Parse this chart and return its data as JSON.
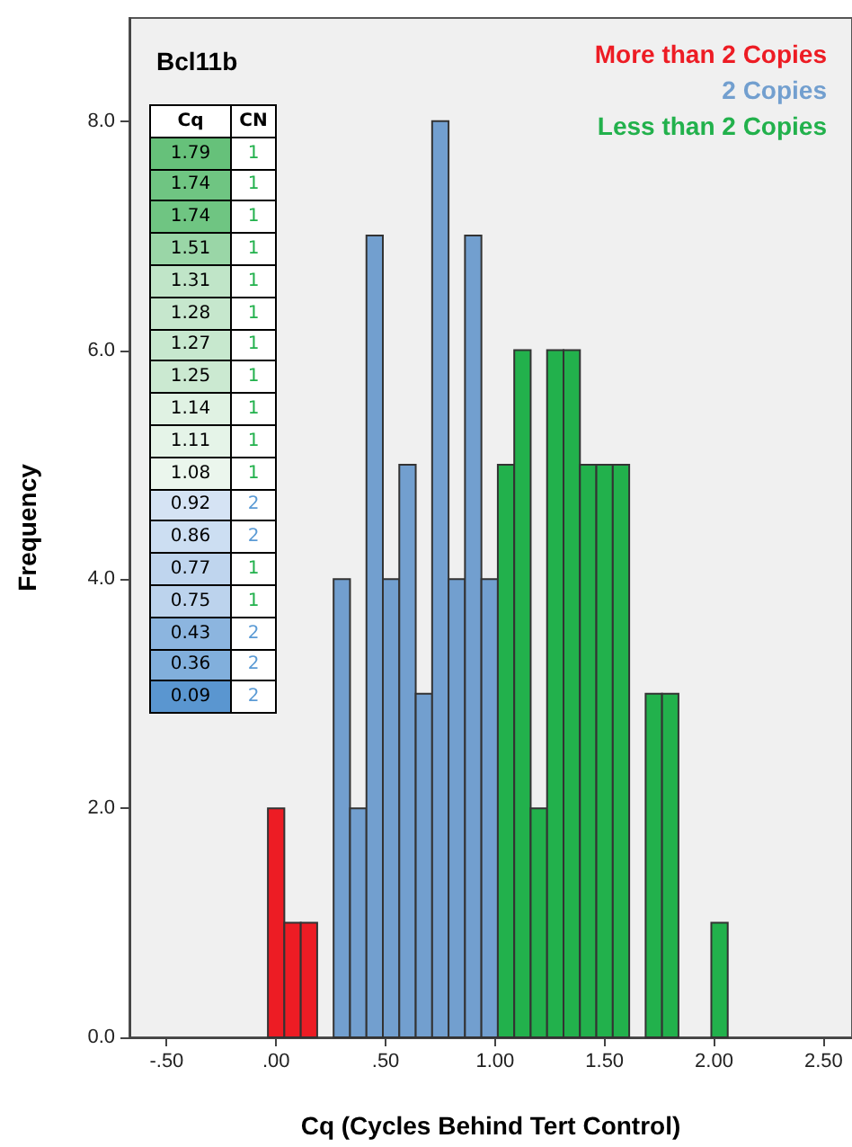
{
  "chart_data": {
    "type": "histogram",
    "title": "Bcl11b",
    "xlabel": "Cq (Cycles Behind Tert Control)",
    "ylabel": "Frequency",
    "bins": [
      -0.0375,
      0.0375,
      0.1125,
      0.1875,
      0.2625,
      0.3375,
      0.4125,
      0.4875,
      0.5625,
      0.6375,
      0.7125,
      0.7875,
      0.8625,
      0.9375,
      1.0125,
      1.0875,
      1.1625,
      1.2375,
      1.3125,
      1.3875,
      1.4625,
      1.5375,
      1.6125,
      1.6875,
      1.7625,
      1.8375,
      1.9125,
      1.9875,
      2.0625
    ],
    "series": [
      {
        "name": "More than 2 Copies",
        "color": "#ed1c24",
        "values": [
          2,
          1,
          1,
          0,
          null,
          null,
          null,
          null,
          null,
          null,
          null,
          null,
          null,
          null,
          null,
          null,
          null,
          null,
          null,
          null,
          null,
          null,
          null,
          null,
          null,
          null,
          null,
          null
        ]
      },
      {
        "name": "2 Copies",
        "color": "#729fcf",
        "values": [
          null,
          null,
          null,
          null,
          4,
          2,
          7,
          4,
          5,
          3,
          8,
          4,
          7,
          4,
          null,
          null,
          null,
          null,
          null,
          null,
          null,
          null,
          null,
          null,
          null,
          null,
          null,
          null
        ]
      },
      {
        "name": "Less than 2 Copies",
        "color": "#22b14c",
        "values": [
          null,
          null,
          null,
          null,
          null,
          null,
          null,
          null,
          null,
          null,
          null,
          null,
          null,
          null,
          5,
          6,
          2,
          6,
          6,
          5,
          5,
          5,
          0,
          3,
          3,
          0,
          0,
          1
        ]
      }
    ],
    "xlim": [
      -0.67,
      2.63
    ],
    "xticks": [
      {
        "value": -0.5,
        "label": "-.50"
      },
      {
        "value": 0,
        "label": ".00"
      },
      {
        "value": 0.5,
        "label": ".50"
      },
      {
        "value": 1,
        "label": "1.00"
      },
      {
        "value": 1.5,
        "label": "1.50"
      },
      {
        "value": 2,
        "label": "2.00"
      },
      {
        "value": 2.5,
        "label": "2.50"
      }
    ],
    "ylim": [
      0,
      8.9
    ],
    "yticks": [
      {
        "value": 0,
        "label": "0.0"
      },
      {
        "value": 2,
        "label": "2.0"
      },
      {
        "value": 4,
        "label": "4.0"
      },
      {
        "value": 6,
        "label": "6.0"
      },
      {
        "value": 8,
        "label": "8.0"
      }
    ],
    "legend": "top right",
    "grid": false,
    "annotations": [
      "Cq",
      "CN",
      "1.79",
      "1",
      "1.74",
      "1",
      "1.74",
      "1",
      "1.51",
      "1",
      "1.31",
      "1",
      "1.28",
      "1",
      "1.27",
      "1",
      "1.25",
      "1",
      "1.14",
      "1",
      "1.11",
      "1",
      "1.08",
      "1",
      "0.92",
      "2",
      "0.86",
      "2",
      "0.77",
      "1",
      "0.75",
      "1",
      "0.43",
      "2",
      "0.36",
      "2",
      "0.09",
      "2"
    ]
  }
}
